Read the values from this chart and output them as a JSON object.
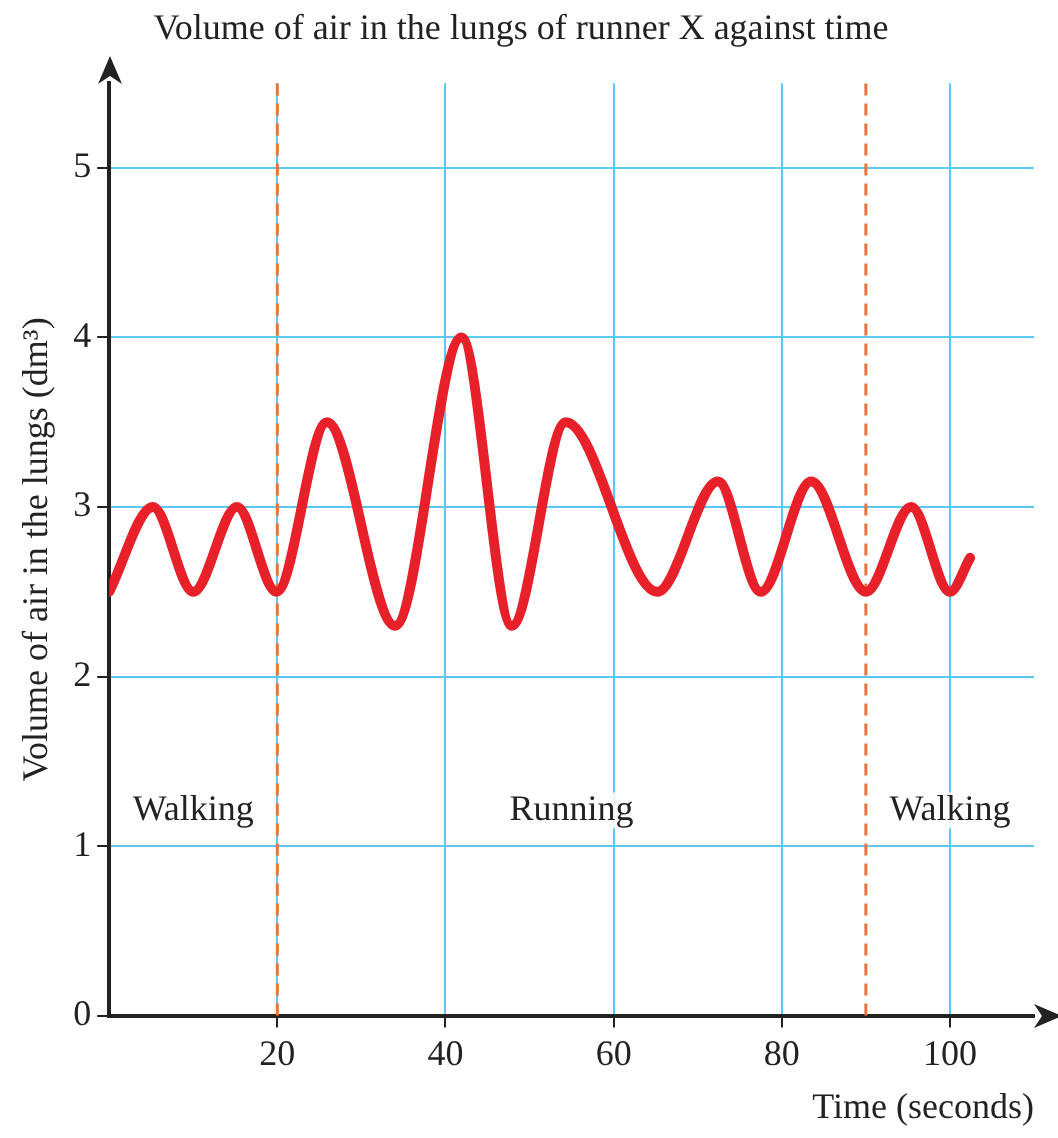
{
  "chart_data": {
    "type": "line",
    "title": "Volume of air in the lungs of runner X against time",
    "xlabel": "Time (seconds)",
    "ylabel": "Volume of air in the lungs (dm³)",
    "series": [
      {
        "color": "#e8202a",
        "x": [
          0,
          5.2,
          10,
          15.2,
          19.9,
          25.9,
          34,
          41.9,
          47.9,
          54.3,
          65.2,
          72.4,
          77.5,
          83.5,
          90,
          95.4,
          100,
          102.4
        ],
        "values": [
          2.5,
          3.0,
          2.5,
          3.0,
          2.5,
          3.5,
          2.3,
          4.0,
          2.3,
          3.5,
          2.5,
          3.15,
          2.5,
          3.15,
          2.5,
          3.0,
          2.5,
          2.7
        ]
      }
    ],
    "xlim": [
      0,
      110
    ],
    "xticks": [
      20,
      40,
      60,
      80,
      100
    ],
    "ylim": [
      0,
      5.5
    ],
    "yticks": [
      0,
      1,
      2,
      3,
      4,
      5
    ],
    "grid": true,
    "marker": "none",
    "line_style": "solid",
    "ref_lines": [
      {
        "axis": "x",
        "value": 20,
        "color": "#e8743b",
        "line_style": "dashed"
      },
      {
        "axis": "x",
        "value": 90,
        "color": "#e8743b",
        "line_style": "dashed"
      }
    ],
    "annotations": [
      "Walking",
      "Running",
      "Walking"
    ]
  }
}
